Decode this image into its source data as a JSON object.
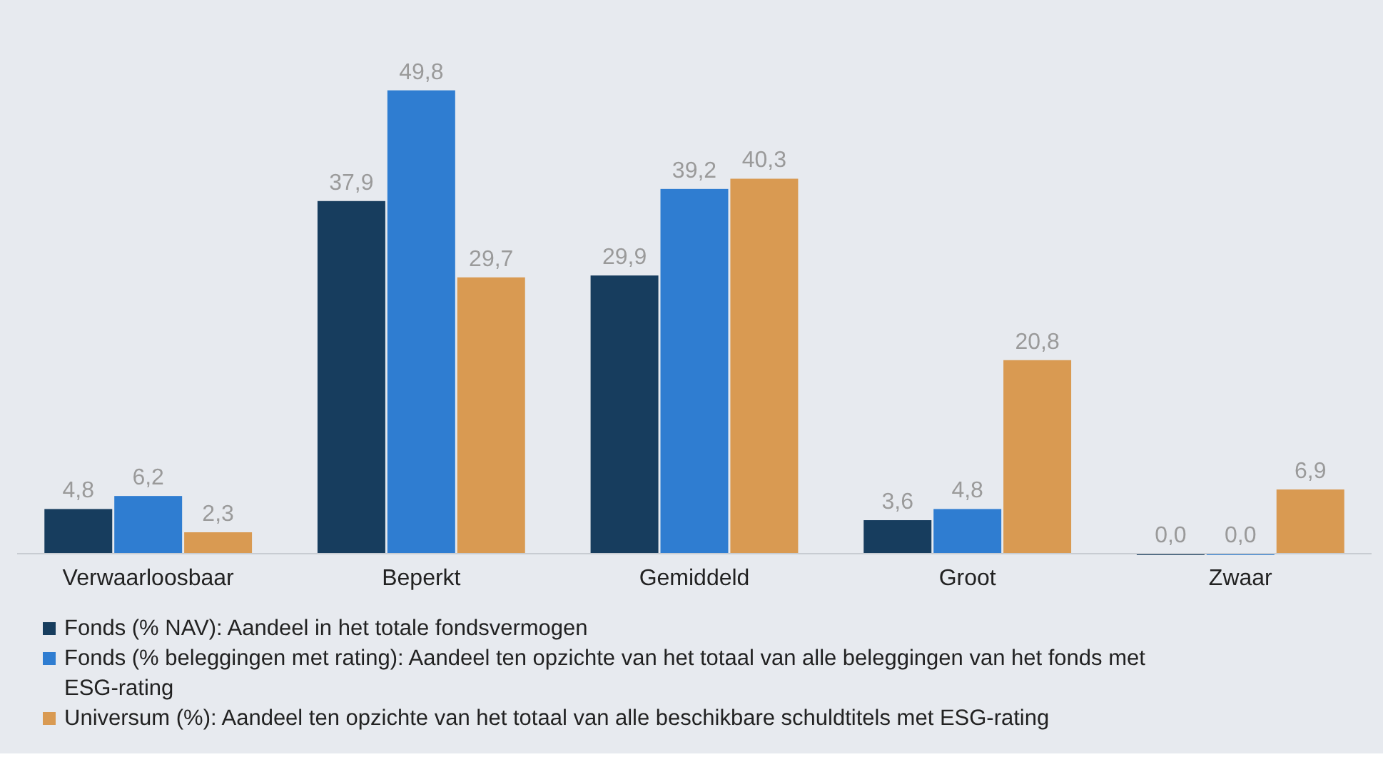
{
  "chart_data": {
    "type": "bar",
    "categories": [
      "Verwaarloosbaar",
      "Beperkt",
      "Gemiddeld",
      "Groot",
      "Zwaar"
    ],
    "series": [
      {
        "name": "Fonds (% NAV): Aandeel in het totale fondsvermogen",
        "color": "#173d5e",
        "values": [
          4.8,
          37.9,
          29.9,
          3.6,
          0.0
        ],
        "value_labels": [
          "4,8",
          "37,9",
          "29,9",
          "3,6",
          "0,0"
        ]
      },
      {
        "name": "Fonds (% beleggingen met rating): Aandeel ten opzichte van het totaal van alle beleggingen van het fonds met ESG-rating",
        "color": "#2f7dd1",
        "values": [
          6.2,
          49.8,
          39.2,
          4.8,
          0.0
        ],
        "value_labels": [
          "6,2",
          "49,8",
          "39,2",
          "4,8",
          "0,0"
        ]
      },
      {
        "name": "Universum (%): Aandeel ten opzichte van het totaal van alle beschikbare schuldtitels met ESG-rating",
        "color": "#d99a52",
        "values": [
          2.3,
          29.7,
          40.3,
          20.8,
          6.9
        ],
        "value_labels": [
          "2,3",
          "29,7",
          "40,3",
          "20,8",
          "6,9"
        ]
      }
    ],
    "ylim": [
      0,
      50
    ],
    "tick_labels": "x",
    "legend": "bottom"
  }
}
